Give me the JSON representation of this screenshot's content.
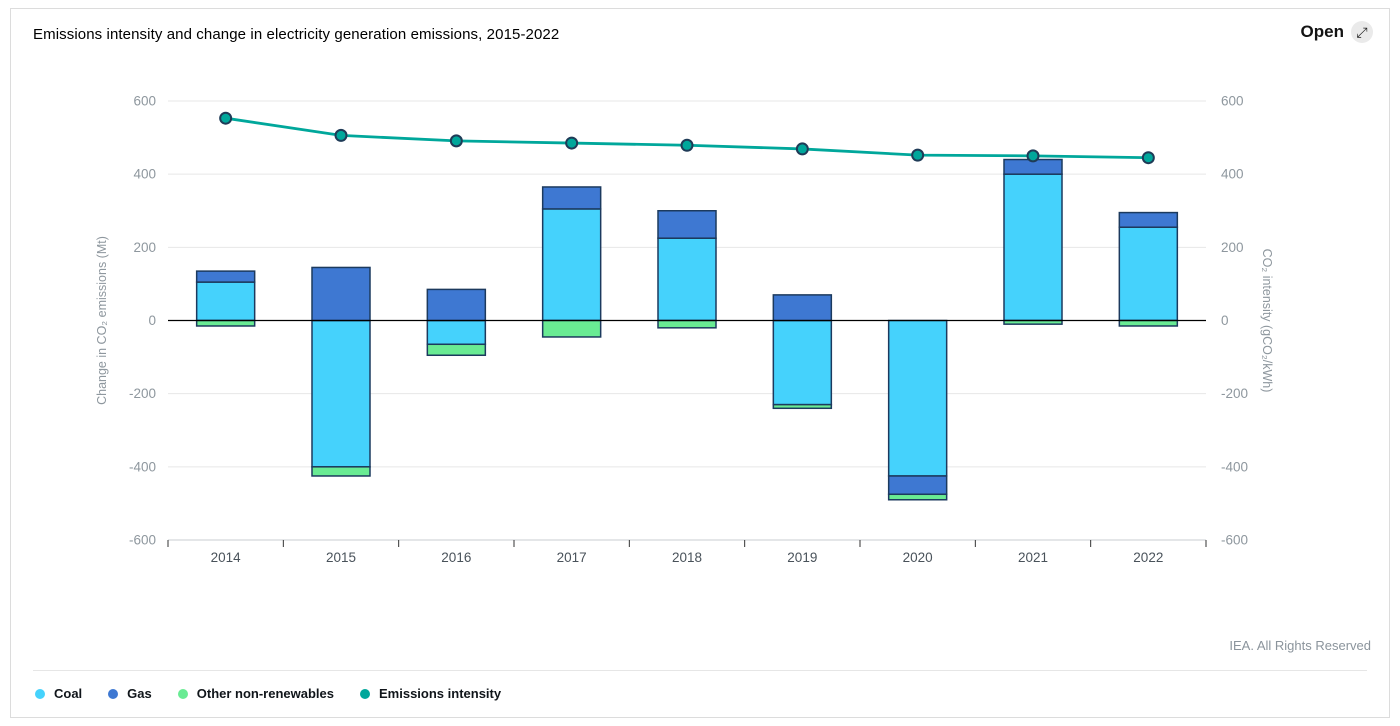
{
  "header": {
    "title": "Emissions intensity and change in electricity generation emissions, 2015-2022",
    "open_label": "Open",
    "open_icon_glyph": "⤢"
  },
  "footer": {
    "attribution": "IEA. All Rights Reserved"
  },
  "colors": {
    "coal": "#45D2FC",
    "gas": "#3E78D2",
    "other": "#69EB93",
    "intensity": "#00A79B",
    "bar_border": "#1C3A5E",
    "marker_border": "#1F3B57",
    "grid": "#E7E7E7",
    "zero_line": "#000000",
    "axis_line": "#C9CDD1",
    "axis_tick": "#333333",
    "tick_label": "#8E979E",
    "year_label": "#49525A",
    "axis_title": "#8E979E"
  },
  "chart_data": {
    "type": "combo-stacked-bar-line",
    "categories": [
      "2014",
      "2015",
      "2016",
      "2017",
      "2018",
      "2019",
      "2020",
      "2021",
      "2022"
    ],
    "bar_series": [
      {
        "name": "Coal",
        "color_key": "coal",
        "values": [
          105,
          -400,
          -65,
          305,
          225,
          -230,
          -425,
          400,
          255
        ]
      },
      {
        "name": "Gas",
        "color_key": "gas",
        "values": [
          30,
          145,
          85,
          60,
          75,
          70,
          -50,
          40,
          40
        ]
      },
      {
        "name": "Other non-renewables",
        "color_key": "other",
        "values": [
          -15,
          -25,
          -30,
          -45,
          -20,
          -10,
          -15,
          -10,
          -15
        ]
      }
    ],
    "line_series": {
      "name": "Emissions intensity",
      "color_key": "intensity",
      "values": [
        553,
        506,
        491,
        485,
        479,
        469,
        452,
        450,
        445
      ]
    },
    "left_axis": {
      "title": "Change in CO₂ emissions (Mt)",
      "ticks": [
        600,
        400,
        200,
        0,
        -200,
        -400,
        -600
      ],
      "min": -600,
      "max": 600
    },
    "right_axis": {
      "title": "CO₂ intensity (gCO₂/kWh)",
      "ticks": [
        600,
        400,
        200,
        0,
        -200,
        -400,
        -600
      ],
      "min": -600,
      "max": 600
    },
    "grid": true,
    "legend_position": "bottom-left"
  },
  "legend": {
    "items": [
      {
        "label": "Coal",
        "color_key": "coal",
        "type": "bar"
      },
      {
        "label": "Gas",
        "color_key": "gas",
        "type": "bar"
      },
      {
        "label": "Other non-renewables",
        "color_key": "other",
        "type": "bar"
      },
      {
        "label": "Emissions intensity",
        "color_key": "intensity",
        "type": "line"
      }
    ]
  }
}
